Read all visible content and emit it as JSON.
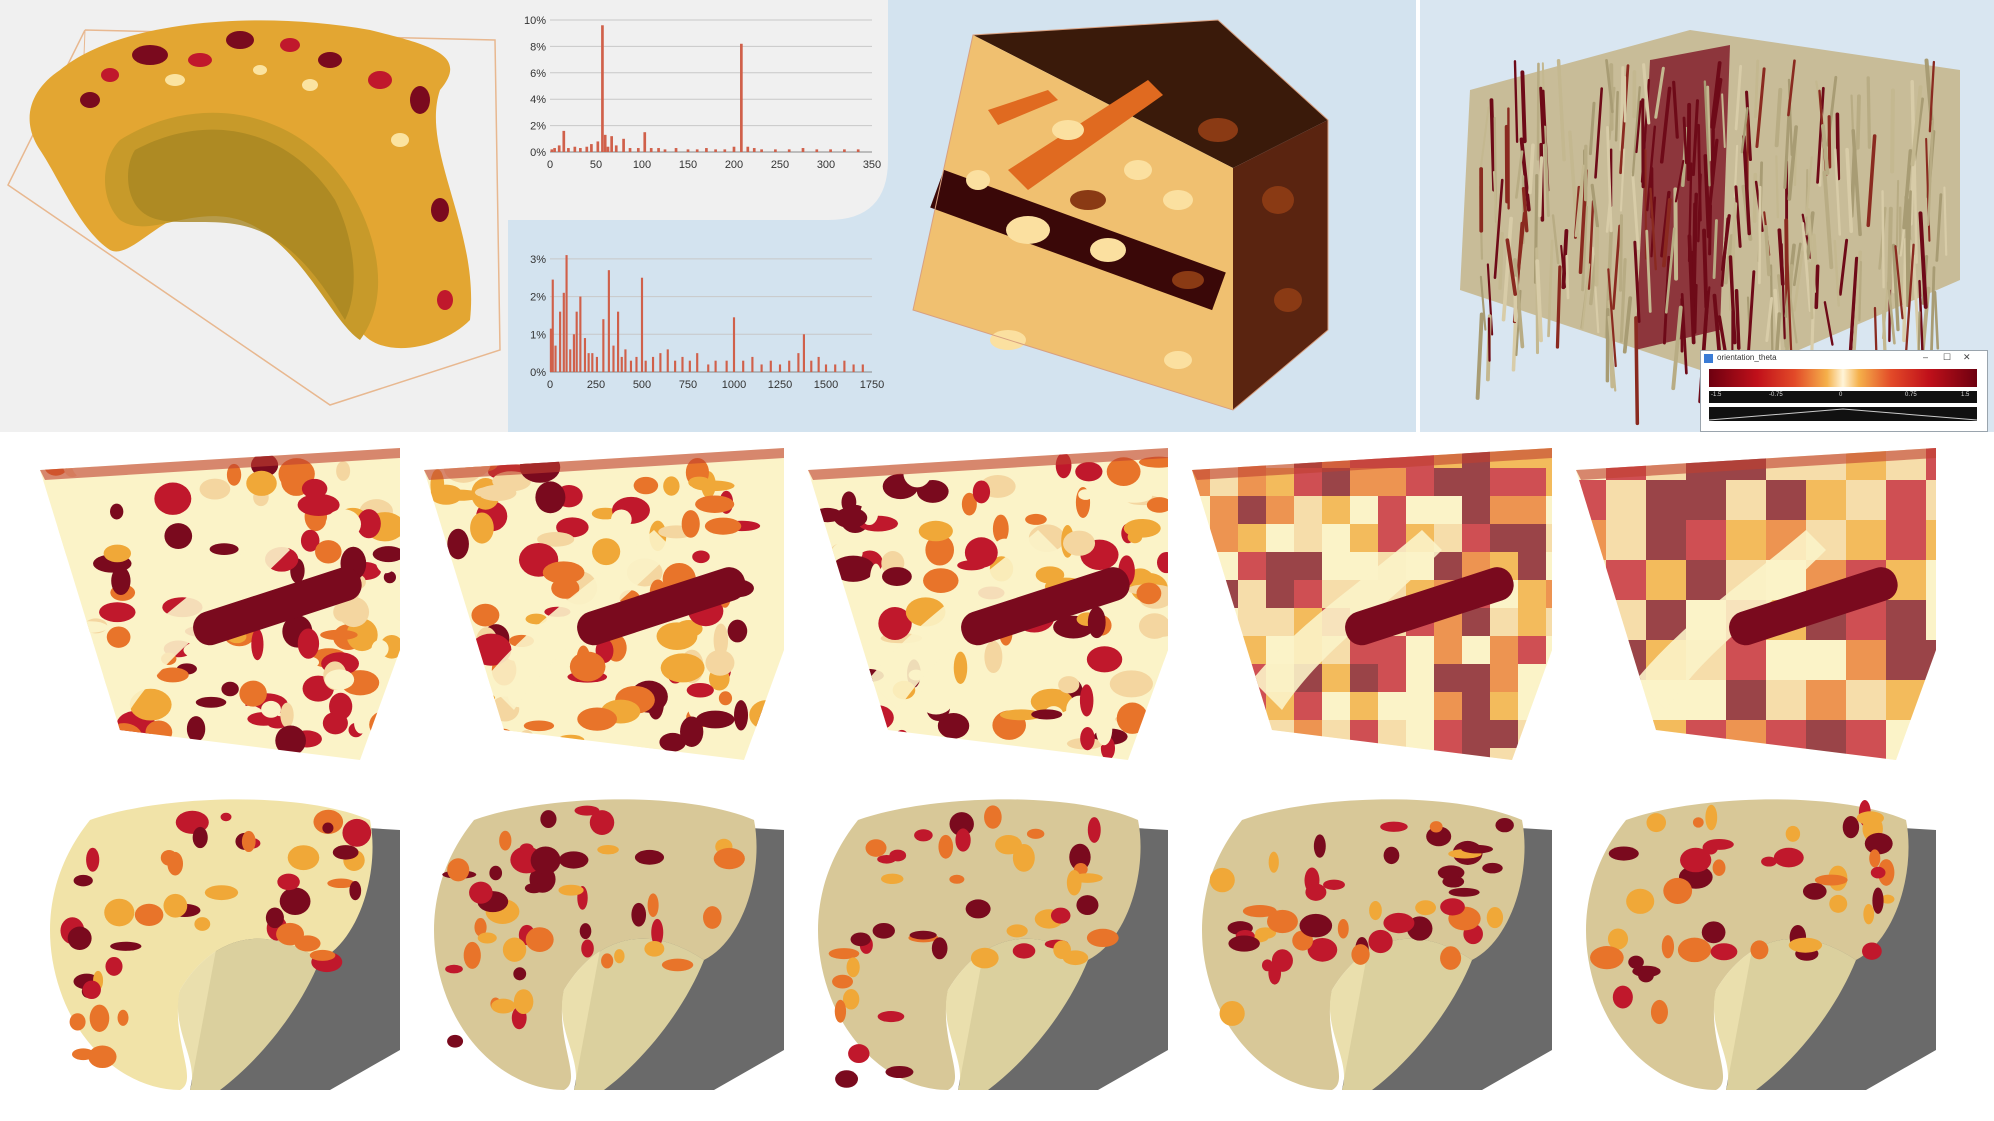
{
  "colors": {
    "dark_red": "#7a0a1e",
    "red": "#c0182c",
    "orange": "#e8742a",
    "amber": "#f0a838",
    "cream": "#fbf3c8",
    "tan": "#d8c898",
    "bg_light": "#f0f0f0",
    "bg_blue": "#d3e3ef",
    "bar_color": "#d0604a"
  },
  "chart_data": [
    {
      "type": "bar",
      "title": "",
      "xlabel": "",
      "ylabel": "",
      "xlim": [
        0,
        350
      ],
      "ylim": [
        0,
        10
      ],
      "yticks": [
        "0%",
        "2%",
        "4%",
        "6%",
        "8%",
        "10%"
      ],
      "xticks": [
        "0",
        "50",
        "100",
        "150",
        "200",
        "250",
        "300",
        "350"
      ],
      "x": [
        2,
        5,
        10,
        15,
        20,
        27,
        33,
        40,
        45,
        52,
        57,
        60,
        63,
        67,
        72,
        80,
        87,
        96,
        103,
        110,
        118,
        125,
        137,
        150,
        160,
        170,
        180,
        190,
        200,
        208,
        215,
        222,
        230,
        245,
        260,
        275,
        290,
        305,
        320,
        335
      ],
      "values": [
        0.2,
        0.3,
        0.5,
        1.6,
        0.3,
        0.4,
        0.3,
        0.4,
        0.6,
        0.8,
        9.6,
        1.3,
        0.4,
        1.2,
        0.5,
        1.0,
        0.3,
        0.3,
        1.5,
        0.3,
        0.3,
        0.2,
        0.3,
        0.2,
        0.2,
        0.3,
        0.2,
        0.2,
        0.4,
        8.2,
        0.4,
        0.3,
        0.2,
        0.2,
        0.2,
        0.3,
        0.2,
        0.2,
        0.2,
        0.2
      ],
      "grid": true
    },
    {
      "type": "bar",
      "title": "",
      "xlabel": "",
      "ylabel": "",
      "xlim": [
        0,
        1750
      ],
      "ylim": [
        0,
        3.5
      ],
      "yticks": [
        "0%",
        "1%",
        "2%",
        "3%"
      ],
      "xticks": [
        "0",
        "250",
        "500",
        "750",
        "1000",
        "1250",
        "1500",
        "1750"
      ],
      "x": [
        5,
        15,
        30,
        55,
        75,
        90,
        110,
        130,
        145,
        165,
        190,
        210,
        230,
        255,
        290,
        320,
        345,
        370,
        390,
        410,
        440,
        470,
        500,
        520,
        560,
        600,
        640,
        680,
        720,
        760,
        800,
        860,
        900,
        960,
        1000,
        1050,
        1100,
        1150,
        1200,
        1250,
        1300,
        1350,
        1380,
        1420,
        1460,
        1500,
        1550,
        1600,
        1650,
        1700
      ],
      "values": [
        1.15,
        2.45,
        0.7,
        1.6,
        2.1,
        3.1,
        0.6,
        1.0,
        1.6,
        2.0,
        0.9,
        0.5,
        0.5,
        0.4,
        1.4,
        2.7,
        0.7,
        1.6,
        0.4,
        0.6,
        0.3,
        0.4,
        2.5,
        0.3,
        0.4,
        0.5,
        0.6,
        0.3,
        0.4,
        0.3,
        0.5,
        0.2,
        0.3,
        0.3,
        1.45,
        0.3,
        0.4,
        0.2,
        0.3,
        0.2,
        0.3,
        0.5,
        1.0,
        0.3,
        0.4,
        0.2,
        0.2,
        0.3,
        0.2,
        0.2
      ],
      "grid": true
    }
  ],
  "colormap_window": {
    "title": "orientation_theta",
    "minimize": "–",
    "maximize": "☐",
    "close": "✕",
    "ticks": [
      "-1.5",
      "-0.75",
      "0",
      "0.75",
      "1.5"
    ]
  }
}
